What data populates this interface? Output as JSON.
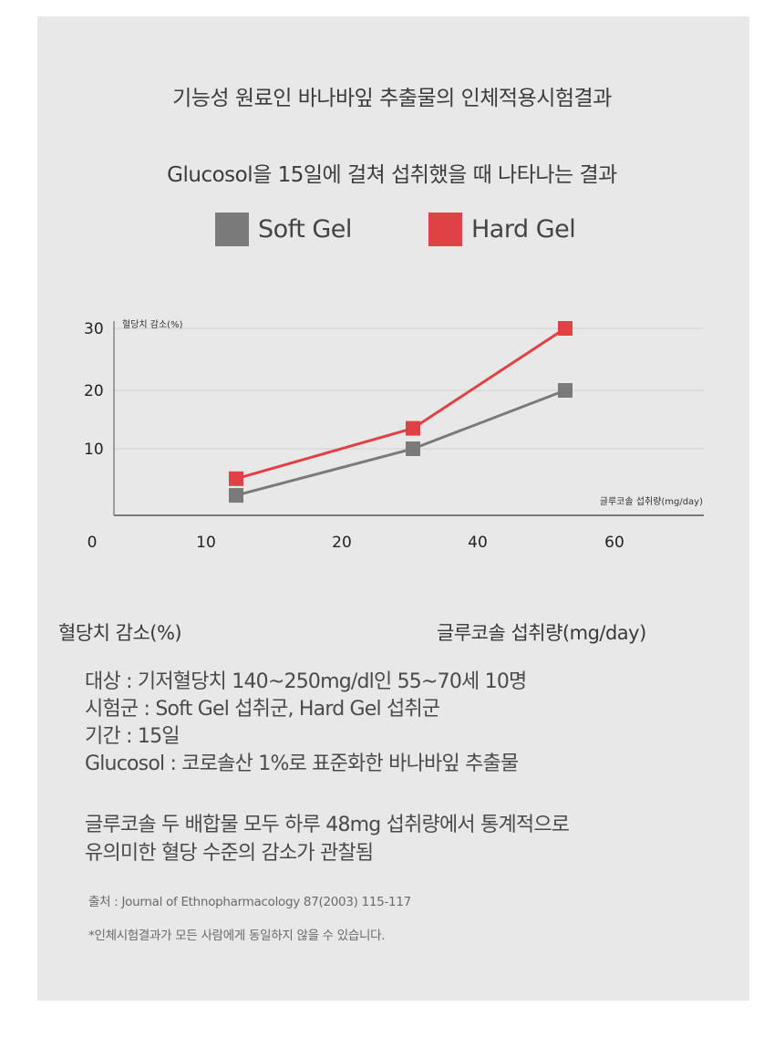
{
  "header": {
    "title_line1": "기능성 원료인 바나바잎 추출물의 인체적용시험결과",
    "title_line2": "Glucosol을 15일에 걸쳐 섭취했을 때 나타나는 결과"
  },
  "colors": {
    "soft_gel": "#7a7a7a",
    "hard_gel": "#e04145",
    "panel_bg": "#e8e8e8"
  },
  "chart_data": {
    "type": "line",
    "title": "",
    "ylabel": "혈당치 감소(%)",
    "xlabel": "글루코솔 섭취량(mg/day)",
    "x_ticks": [
      "0",
      "10",
      "20",
      "40",
      "60"
    ],
    "y_ticks": [
      "10",
      "20",
      "30"
    ],
    "ylim": [
      0,
      30
    ],
    "grid": "horizontal",
    "legend_position": "top-center",
    "series": [
      {
        "name": "Soft Gel",
        "color": "#7a7a7a",
        "points": [
          {
            "x": "12",
            "y": 3
          },
          {
            "x": "35",
            "y": 10
          },
          {
            "x": "57",
            "y": 20
          }
        ]
      },
      {
        "name": "Hard Gel",
        "color": "#e04145",
        "points": [
          {
            "x": "12",
            "y": 5.5
          },
          {
            "x": "35",
            "y": 13.5
          },
          {
            "x": "57",
            "y": 30
          }
        ]
      }
    ]
  },
  "labels": {
    "y_label_below": "혈당치 감소(%)",
    "x_label_below": "글루코솔 섭취량(mg/day)"
  },
  "info": {
    "line1": "대상 : 기저혈당치 140~250mg/dl인 55~70세 10명",
    "line2": "시험군 : Soft Gel 섭취군,  Hard Gel 섭취군",
    "line3": "기간 : 15일",
    "line4": "Glucosol : 코로솔산 1%로 표준화한 바나바잎 추출물",
    "conclusion1": "글루코솔 두 배합물 모두 하루 48mg 섭취량에서 통계적으로",
    "conclusion2": "유의미한 혈당 수준의 감소가 관찰됨"
  },
  "footer": {
    "source": "출처 : Journal of Ethnopharmacology 87(2003) 115-117",
    "disclaimer": "*인체시험결과가 모든 사람에게 동일하지 않을 수 있습니다."
  }
}
